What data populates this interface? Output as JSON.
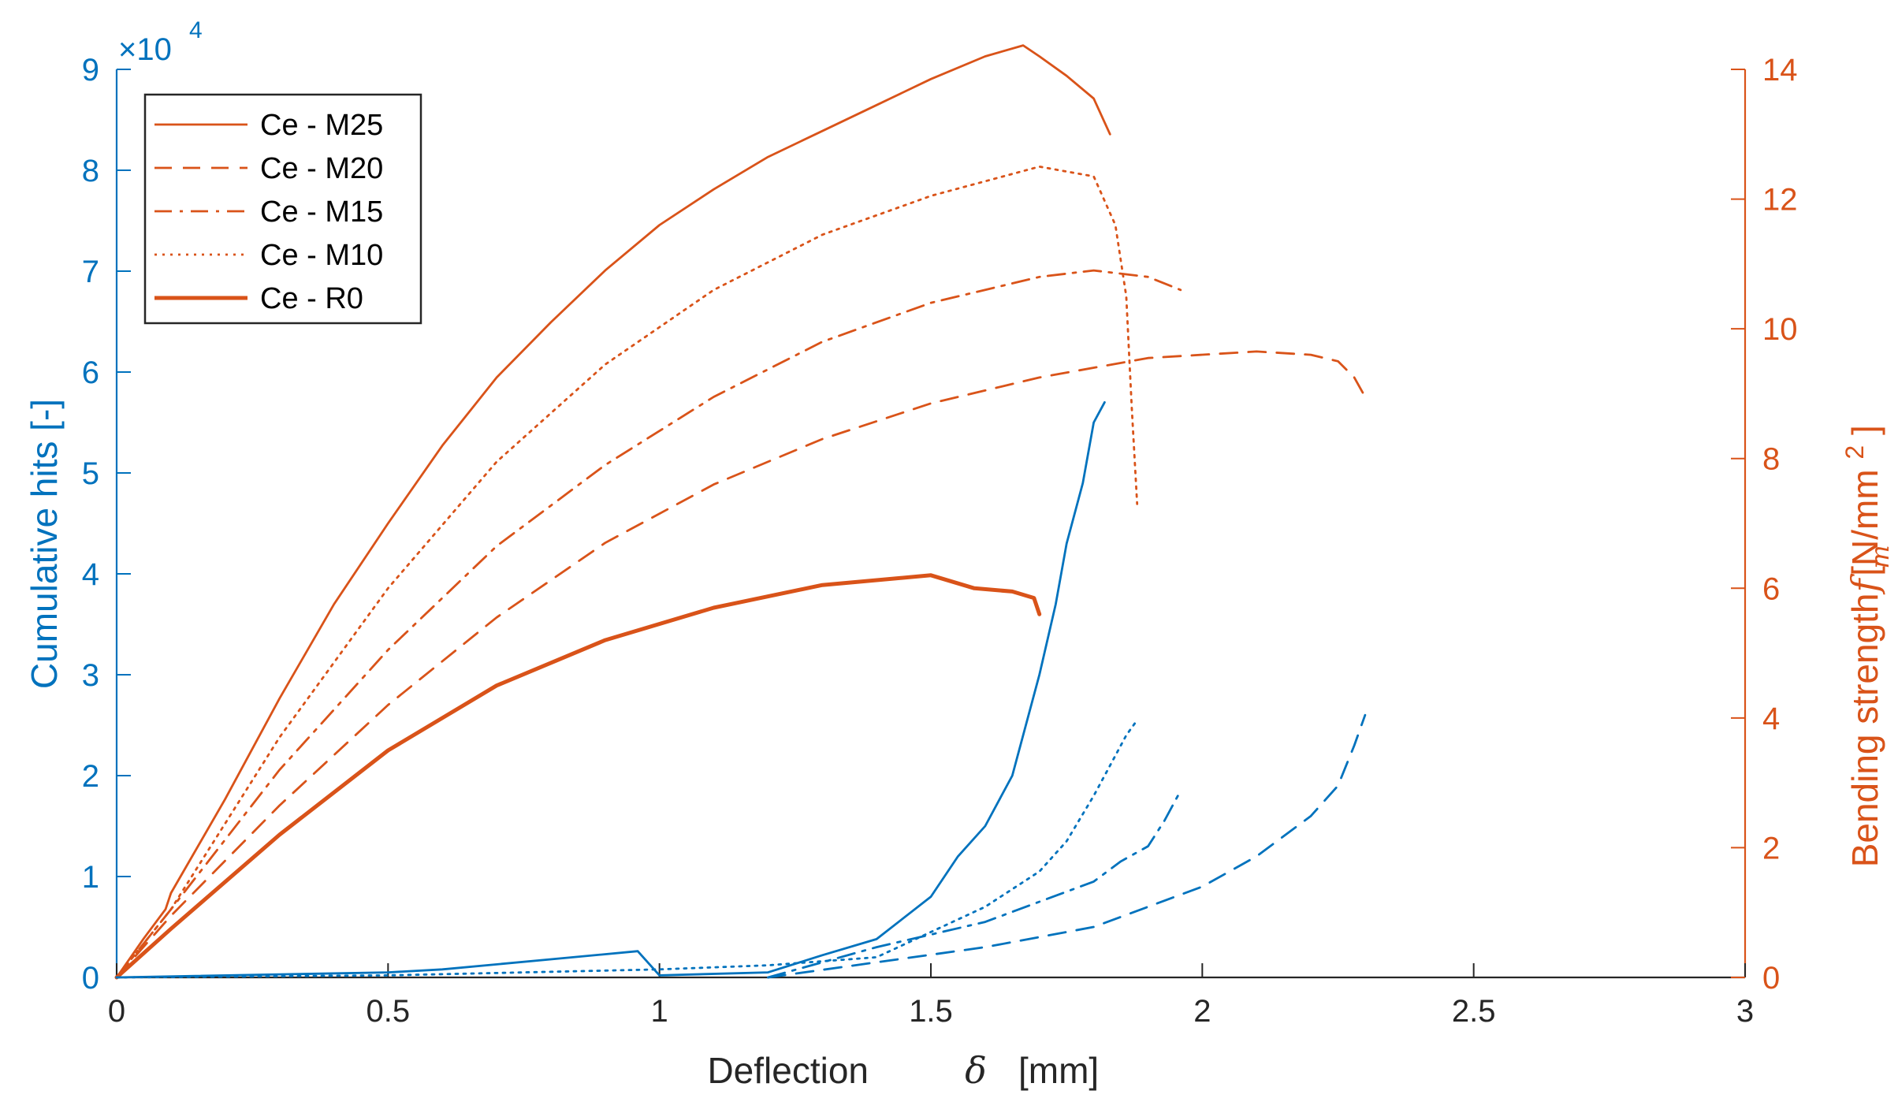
{
  "chart_data": {
    "type": "line",
    "xlabel": "Deflection",
    "xlabel_symbol": "δ",
    "xlabel_unit": "[mm]",
    "xlim": [
      0,
      3
    ],
    "x_ticks": [
      "0",
      "0.5",
      "1",
      "1.5",
      "2",
      "2.5",
      "3"
    ],
    "y_left": {
      "label": "Cumulative hits [-]",
      "lim": [
        0,
        9
      ],
      "ticks": [
        "0",
        "1",
        "2",
        "3",
        "4",
        "5",
        "6",
        "7",
        "8",
        "9"
      ],
      "exponent_prefix": "×10",
      "exponent_power": "4",
      "color": "#0072BD"
    },
    "y_right": {
      "label": "Bending strength",
      "label_symbol": "f",
      "label_subscript": "m",
      "label_unit": "[N/mm",
      "label_unit_power": "2",
      "label_unit_close": "]",
      "lim": [
        0,
        14
      ],
      "ticks": [
        "0",
        "2",
        "4",
        "6",
        "8",
        "10",
        "12",
        "14"
      ],
      "color": "#D95319"
    },
    "legend": {
      "location": "top-left",
      "entries": [
        {
          "label": "Ce - M25",
          "style": "solid"
        },
        {
          "label": "Ce - M20",
          "style": "dashed"
        },
        {
          "label": "Ce - M15",
          "style": "dashdot"
        },
        {
          "label": "Ce - M10",
          "style": "dotted"
        },
        {
          "label": "Ce - R0",
          "style": "solid-thick"
        }
      ]
    },
    "series": [
      {
        "name": "Ce - M25",
        "axis": "right",
        "style": "solid",
        "color": "#D95319",
        "x": [
          0,
          0.05,
          0.09,
          0.1,
          0.2,
          0.3,
          0.4,
          0.5,
          0.6,
          0.7,
          0.8,
          0.9,
          1.0,
          1.1,
          1.2,
          1.3,
          1.4,
          1.5,
          1.6,
          1.67,
          1.7,
          1.75,
          1.8,
          1.83
        ],
        "y": [
          0,
          0.6,
          1.05,
          1.3,
          2.75,
          4.3,
          5.75,
          7.0,
          8.2,
          9.25,
          10.1,
          10.9,
          11.6,
          12.15,
          12.65,
          13.05,
          13.45,
          13.85,
          14.2,
          14.37,
          14.2,
          13.9,
          13.55,
          13.0
        ],
        "y_right_values": [
          0,
          0.6,
          1.05,
          1.3,
          2.75,
          4.3,
          5.75,
          7.0,
          8.2,
          9.25,
          10.1,
          10.9,
          11.6,
          12.15,
          12.65,
          13.05,
          13.45,
          13.85,
          14.2,
          14.37,
          14.2,
          13.9,
          13.55,
          13.0
        ]
      },
      {
        "name": "Ce - M20",
        "axis": "right",
        "style": "dashed",
        "color": "#D95319",
        "x": [
          0,
          0.1,
          0.3,
          0.5,
          0.7,
          0.9,
          1.1,
          1.3,
          1.5,
          1.7,
          1.9,
          2.1,
          2.2,
          2.25,
          2.28,
          2.3
        ],
        "y": [
          0,
          0.95,
          2.65,
          4.2,
          5.55,
          6.7,
          7.6,
          8.3,
          8.85,
          9.25,
          9.55,
          9.65,
          9.6,
          9.5,
          9.25,
          8.95
        ]
      },
      {
        "name": "Ce - M15",
        "axis": "right",
        "style": "dashdot",
        "color": "#D95319",
        "x": [
          0,
          0.1,
          0.3,
          0.5,
          0.7,
          0.9,
          1.1,
          1.3,
          1.5,
          1.7,
          1.8,
          1.9,
          1.96
        ],
        "y": [
          0,
          1.05,
          3.2,
          5.05,
          6.65,
          7.9,
          8.95,
          9.8,
          10.4,
          10.8,
          10.9,
          10.8,
          10.6
        ]
      },
      {
        "name": "Ce - M10",
        "axis": "right",
        "style": "dotted",
        "color": "#D95319",
        "x": [
          0,
          0.1,
          0.3,
          0.5,
          0.7,
          0.9,
          1.1,
          1.3,
          1.5,
          1.7,
          1.8,
          1.84,
          1.86,
          1.87,
          1.88
        ],
        "y": [
          0,
          1.05,
          3.7,
          6.0,
          7.95,
          9.45,
          10.6,
          11.45,
          12.05,
          12.5,
          12.35,
          11.6,
          10.5,
          8.8,
          7.3
        ]
      },
      {
        "name": "Ce - R0",
        "axis": "right",
        "style": "solid-thick",
        "color": "#D95319",
        "x": [
          0,
          0.1,
          0.3,
          0.5,
          0.7,
          0.9,
          1.1,
          1.3,
          1.5,
          1.58,
          1.65,
          1.69,
          1.7
        ],
        "y": [
          0,
          0.75,
          2.2,
          3.5,
          4.5,
          5.2,
          5.7,
          6.05,
          6.2,
          6.0,
          5.95,
          5.85,
          5.6
        ]
      },
      {
        "name": "Ce - M25 hits",
        "axis": "left",
        "style": "solid",
        "color": "#0072BD",
        "x": [
          0,
          0.5,
          0.6,
          0.8,
          0.96,
          1.0,
          1.2,
          1.3,
          1.4,
          1.5,
          1.55,
          1.6,
          1.65,
          1.7,
          1.73,
          1.75,
          1.78,
          1.8,
          1.82
        ],
        "y": [
          0,
          0.05,
          0.08,
          0.18,
          0.26,
          0.02,
          0.05,
          0.22,
          0.38,
          0.8,
          1.2,
          1.5,
          2.0,
          3.0,
          3.7,
          4.3,
          4.9,
          5.5,
          5.7
        ]
      },
      {
        "name": "Ce - M20 hits",
        "axis": "left",
        "style": "dashed",
        "color": "#0072BD",
        "x": [
          1.2,
          1.4,
          1.6,
          1.8,
          1.9,
          2.0,
          2.1,
          2.2,
          2.25,
          2.28,
          2.3
        ],
        "y": [
          0,
          0.15,
          0.3,
          0.5,
          0.7,
          0.9,
          1.2,
          1.6,
          1.9,
          2.3,
          2.6
        ]
      },
      {
        "name": "Ce - M15 hits",
        "axis": "left",
        "style": "dashdot",
        "color": "#0072BD",
        "x": [
          1.2,
          1.4,
          1.6,
          1.7,
          1.8,
          1.85,
          1.9,
          1.93,
          1.96
        ],
        "y": [
          0,
          0.3,
          0.55,
          0.75,
          0.95,
          1.15,
          1.3,
          1.55,
          1.85
        ]
      },
      {
        "name": "Ce - M10 hits",
        "axis": "left",
        "style": "dotted",
        "color": "#0072BD",
        "x": [
          0,
          0.5,
          1.0,
          1.2,
          1.4,
          1.5,
          1.6,
          1.7,
          1.75,
          1.8,
          1.83,
          1.86,
          1.88
        ],
        "y": [
          0,
          0.02,
          0.08,
          0.12,
          0.2,
          0.45,
          0.7,
          1.05,
          1.35,
          1.8,
          2.1,
          2.4,
          2.55
        ]
      }
    ]
  }
}
